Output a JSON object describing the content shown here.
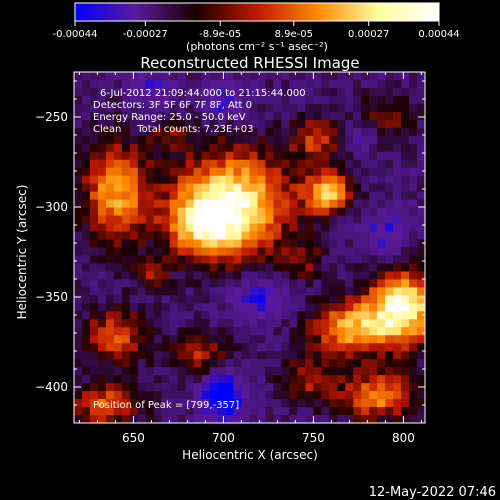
{
  "chart_data": {
    "type": "heatmap",
    "title": "Reconstructed RHESSI Image",
    "xlabel": "Heliocentric X (arcsec)",
    "ylabel": "Heliocentric Y (arcsec)",
    "xlim": [
      617,
      812
    ],
    "ylim": [
      -420,
      -225
    ],
    "x_ticks": [
      650,
      700,
      750,
      800
    ],
    "y_ticks": [
      -250,
      -300,
      -350,
      -400
    ],
    "colorbar": {
      "label": "(photons cm⁻² s⁻¹ asec⁻²)",
      "range": [
        -0.00044,
        0.00044
      ],
      "tick_values": [
        -0.00044,
        -0.00027,
        -8.9e-05,
        8.9e-05,
        0.00027,
        0.00044
      ],
      "tick_labels": [
        "-0.00044",
        "-0.00027",
        "-8.9e-05",
        "8.9e-05",
        "0.00027",
        "0.00044"
      ],
      "colors": [
        "#0000ff",
        "#5a1a9a",
        "#1a0000",
        "#c01800",
        "#ff8a00",
        "#ffffa0",
        "#ffffff"
      ]
    },
    "info_lines": [
      "6-Jul-2012 21:09:44.000 to 21:15:44.000",
      "Detectors: 3F 5F 6F 7F 8F, Att 0",
      "Energy Range: 25.0 - 50.0 keV",
      "Clean     Total counts: 7.23E+03"
    ],
    "peak_label": "Position of Peak = [799,-357]",
    "grid": false,
    "sources": [
      {
        "x": 705,
        "y": -298,
        "sx": 23,
        "sy": 21,
        "amp": 1.0
      },
      {
        "x": 688,
        "y": -310,
        "sx": 14,
        "sy": 12,
        "amp": 0.55
      },
      {
        "x": 640,
        "y": -292,
        "sx": 13,
        "sy": 20,
        "amp": 0.75
      },
      {
        "x": 758,
        "y": -292,
        "sx": 9,
        "sy": 8,
        "amp": 0.85
      },
      {
        "x": 800,
        "y": -356,
        "sx": 14,
        "sy": 15,
        "amp": 1.05
      },
      {
        "x": 770,
        "y": -368,
        "sx": 15,
        "sy": 11,
        "amp": 0.75
      },
      {
        "x": 785,
        "y": -405,
        "sx": 16,
        "sy": 9,
        "amp": 0.7
      },
      {
        "x": 752,
        "y": -262,
        "sx": 10,
        "sy": 9,
        "amp": 0.5
      },
      {
        "x": 640,
        "y": -372,
        "sx": 13,
        "sy": 11,
        "amp": 0.55
      },
      {
        "x": 635,
        "y": -410,
        "sx": 14,
        "sy": 8,
        "amp": 0.6
      },
      {
        "x": 688,
        "y": -382,
        "sx": 12,
        "sy": 8,
        "amp": 0.45
      },
      {
        "x": 745,
        "y": -395,
        "sx": 10,
        "sy": 9,
        "amp": 0.4
      },
      {
        "x": 790,
        "y": -250,
        "sx": 12,
        "sy": 9,
        "amp": 0.35
      },
      {
        "x": 745,
        "y": -330,
        "sx": 8,
        "sy": 8,
        "amp": 0.3
      },
      {
        "x": 660,
        "y": -338,
        "sx": 7,
        "sy": 6,
        "amp": 0.35
      },
      {
        "x": 670,
        "y": -260,
        "sx": 8,
        "sy": 6,
        "amp": 0.3
      }
    ],
    "minima": [
      {
        "x": 700,
        "y": -405,
        "sx": 8,
        "sy": 9,
        "amp": 0.7
      },
      {
        "x": 720,
        "y": -350,
        "sx": 11,
        "sy": 8,
        "amp": 0.4
      },
      {
        "x": 790,
        "y": -315,
        "sx": 9,
        "sy": 9,
        "amp": 0.35
      },
      {
        "x": 700,
        "y": -242,
        "sx": 9,
        "sy": 7,
        "amp": 0.35
      },
      {
        "x": 775,
        "y": -260,
        "sx": 7,
        "sy": 6,
        "amp": 0.3
      },
      {
        "x": 660,
        "y": -235,
        "sx": 8,
        "sy": 7,
        "amp": 0.3
      }
    ]
  },
  "footer": {
    "date": "12-May-2022 07:46"
  }
}
